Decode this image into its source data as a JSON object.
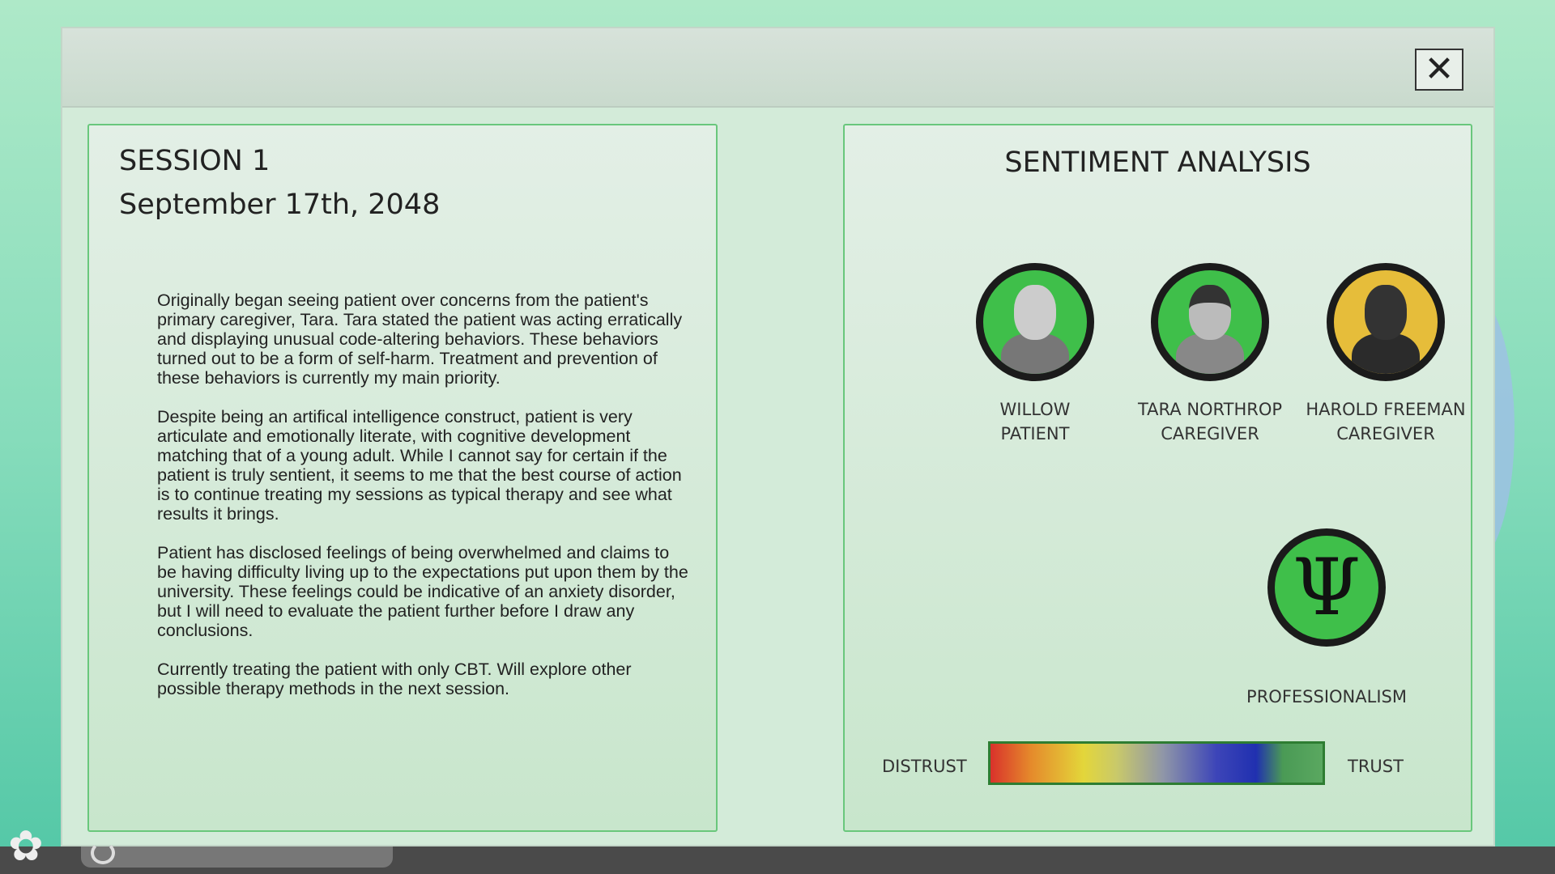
{
  "window": {
    "close_icon": "close-x-icon"
  },
  "session": {
    "title": "SESSION 1",
    "date": "September 17th, 2048",
    "notes": [
      "Originally began seeing patient over concerns from the patient's primary caregiver, Tara. Tara stated the patient was acting erratically and displaying unusual code-altering behaviors. These behaviors turned out to be a form of self-harm. Treatment and prevention of these behaviors is currently my main priority.",
      "Despite being an artifical intelligence construct, patient is very articulate and emotionally literate, with cognitive development matching that of a young adult. While I cannot say for certain if the patient is truly sentient, it seems to me that the best course of action is to continue treating my sessions as typical therapy and see what results it brings.",
      "Patient has disclosed feelings of being overwhelmed and claims to be having difficulty living up to the expectations put upon them by the university. These feelings could be indicative of an anxiety disorder, but I will need to evaluate the patient further before I draw any conclusions.",
      "Currently treating the patient with only CBT. Will explore other possible therapy methods in the next session."
    ]
  },
  "sentiment": {
    "title": "SENTIMENT ANALYSIS",
    "people": [
      {
        "name": "WILLOW",
        "role": "PATIENT",
        "color": "#3fbf4a"
      },
      {
        "name": "TARA NORTHROP",
        "role": "CAREGIVER",
        "color": "#3fbf4a"
      },
      {
        "name": "HAROLD FREEMAN",
        "role": "CAREGIVER",
        "color": "#e6bd3a"
      }
    ],
    "professionalism": {
      "label": "PROFESSIONALISM",
      "icon": "psi-icon",
      "symbol": "Ψ",
      "color": "#3fbf4a"
    },
    "scale": {
      "low": "DISTRUST",
      "high": "TRUST"
    }
  },
  "taskbar": {
    "icon": "flower-icon",
    "glyph": "✿"
  }
}
